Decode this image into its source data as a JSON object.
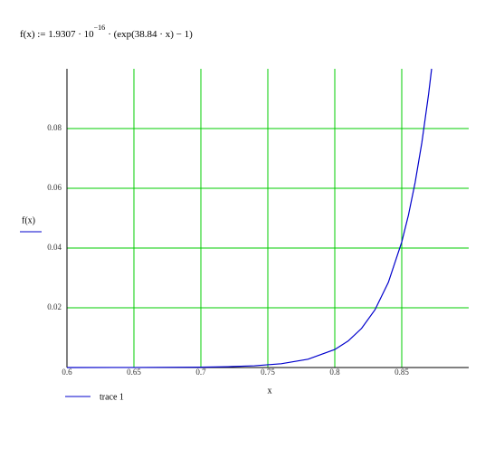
{
  "chart_data": {
    "type": "line",
    "formula": {
      "base": "f(x) := 1.9307 · 10",
      "exponent": "−16",
      "rest": "· (exp(38.84 · x) − 1)"
    },
    "x_label": "x",
    "y_label": "f(x)",
    "x": [
      0.6,
      0.65,
      0.7,
      0.72,
      0.74,
      0.76,
      0.78,
      0.8,
      0.81,
      0.82,
      0.83,
      0.84,
      0.85,
      0.855,
      0.86,
      0.865,
      0.87,
      0.8723
    ],
    "series": [
      {
        "name": "trace 1",
        "color": "#0000cc",
        "values": [
          2.6e-06,
          1.78e-05,
          0.000124,
          0.00027,
          0.000586,
          0.001275,
          0.002772,
          0.006027,
          0.008888,
          0.013106,
          0.019326,
          0.0285,
          0.04203,
          0.05103,
          0.06197,
          0.07526,
          0.09139,
          0.1
        ]
      }
    ],
    "xlim": [
      0.6,
      0.9
    ],
    "ylim": [
      0,
      0.1
    ],
    "xticks": [
      0.6,
      0.65,
      0.7,
      0.75,
      0.8,
      0.85
    ],
    "yticks": [
      0.02,
      0.04,
      0.06,
      0.08
    ],
    "grid": true,
    "grid_color": "#00cc00"
  }
}
